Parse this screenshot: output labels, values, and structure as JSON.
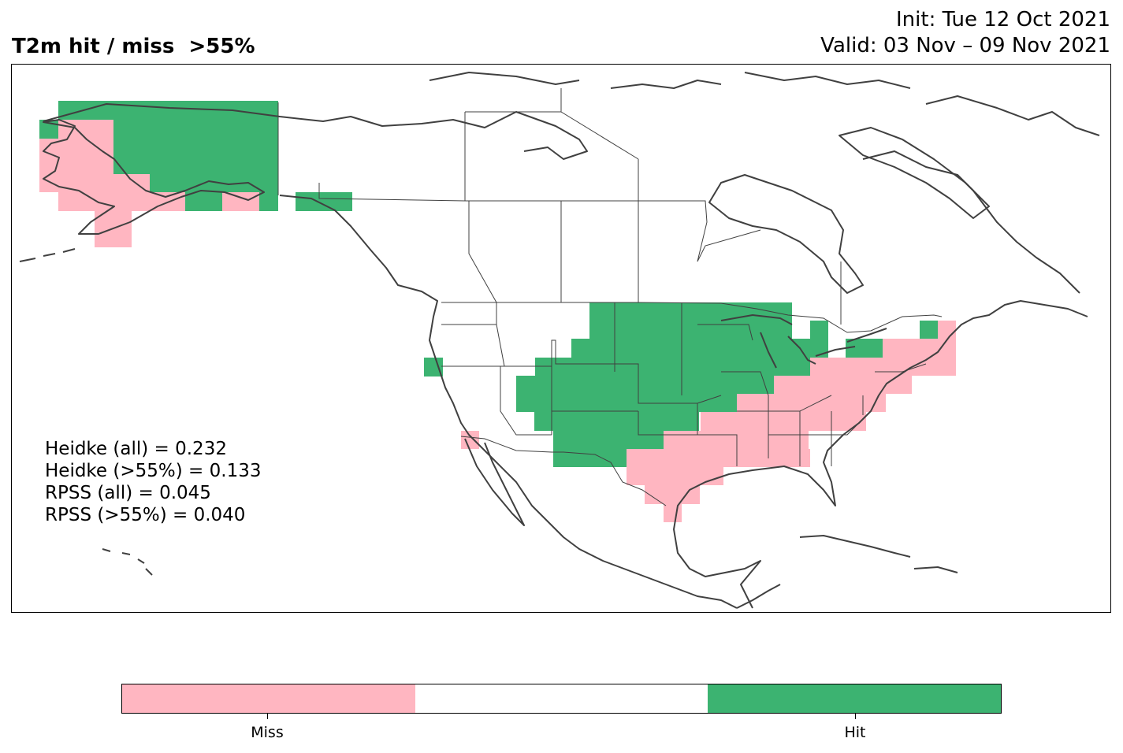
{
  "title": "T2m hit / miss  >55%",
  "init": "Init: Tue 12 Oct 2021",
  "valid": "Valid: 03 Nov – 09 Nov 2021",
  "stats": {
    "heidke_all": "Heidke (all) = 0.232",
    "heidke_55": "Heidke (>55%) = 0.133",
    "rpss_all": "RPSS (all) = 0.045",
    "rpss_55": "RPSS (>55%) = 0.040"
  },
  "colors": {
    "miss": "#ffb6c1",
    "neutral": "#ffffff",
    "hit": "#3cb371",
    "coast": "#404040"
  },
  "colorbar": {
    "labels": [
      "Miss",
      "",
      "Hit"
    ]
  },
  "map": {
    "region": "North America",
    "legend_categories": [
      "Miss",
      "Hit"
    ]
  }
}
